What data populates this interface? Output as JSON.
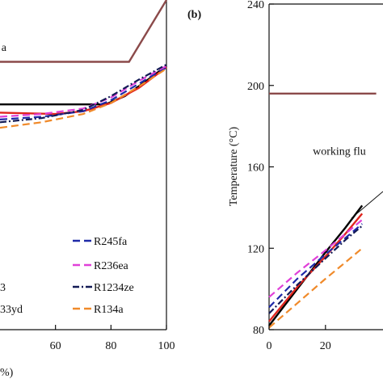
{
  "chart_data": [
    {
      "type": "line",
      "panel_label": "",
      "xlabel": "%)",
      "ylabel": "",
      "xlim": [
        40,
        100
      ],
      "ylim": [
        -5,
        235
      ],
      "x_ticks": [
        "60",
        "80",
        "100"
      ],
      "y_ticks": [],
      "annotations": [
        {
          "text": "a",
          "x": 40.5,
          "y": 198
        }
      ],
      "legend": [
        "R245fa",
        "R236ea",
        "R1234ze",
        "R134a",
        "3",
        "33yd"
      ],
      "series": [
        {
          "name": "heat-source",
          "color": "#8b4a4a",
          "style": "solid",
          "x": [
            40,
            86.5,
            100
          ],
          "y": [
            190,
            190,
            235
          ]
        },
        {
          "name": "black-solid",
          "color": "#000000",
          "style": "solid",
          "x": [
            40,
            78,
            85,
            92,
            100
          ],
          "y": [
            159,
            159,
            165,
            175,
            187
          ]
        },
        {
          "name": "red-solid",
          "color": "#e0261f",
          "style": "solid",
          "x": [
            40,
            60,
            70,
            80,
            90,
            100
          ],
          "y": [
            153,
            152,
            154,
            160,
            171,
            186
          ]
        },
        {
          "name": "R245fa",
          "color": "#1f2aa8",
          "style": "dashed",
          "x": [
            40,
            55,
            70,
            80,
            90,
            100
          ],
          "y": [
            148,
            150,
            154,
            162,
            174,
            186
          ]
        },
        {
          "name": "R236ea",
          "color": "#e040d8",
          "style": "dashed",
          "x": [
            40,
            55,
            70,
            80,
            90,
            100
          ],
          "y": [
            150,
            152,
            156,
            164,
            176,
            187
          ]
        },
        {
          "name": "R1234ze",
          "color": "#121a55",
          "style": "dashdot",
          "x": [
            40,
            55,
            70,
            80,
            90,
            100
          ],
          "y": [
            146,
            149,
            155,
            165,
            177,
            188
          ]
        },
        {
          "name": "R134a",
          "color": "#f08a2a",
          "style": "dashed",
          "x": [
            40,
            55,
            70,
            80,
            90,
            100
          ],
          "y": [
            142,
            146,
            152,
            160,
            172,
            185
          ]
        }
      ]
    },
    {
      "type": "line",
      "panel_label": "(b)",
      "xlabel": "",
      "ylabel": "Temperature (°C)",
      "xlim": [
        0,
        38
      ],
      "ylim": [
        80,
        240
      ],
      "x_ticks": [
        "0",
        "20"
      ],
      "y_ticks": [
        "80",
        "120",
        "160",
        "200",
        "240"
      ],
      "annotations": [
        {
          "text": "working flu",
          "x": 15.5,
          "y": 166
        }
      ],
      "series": [
        {
          "name": "heat-source",
          "color": "#8b4a4a",
          "style": "solid",
          "x": [
            0,
            38
          ],
          "y": [
            196,
            196
          ]
        },
        {
          "name": "black-solid",
          "color": "#000000",
          "style": "solid",
          "x": [
            0,
            10,
            20,
            27,
            33
          ],
          "y": [
            82,
            100,
            118,
            130,
            141
          ]
        },
        {
          "name": "red-solid",
          "color": "#e0261f",
          "style": "solid",
          "x": [
            0,
            10,
            20,
            27,
            33
          ],
          "y": [
            84,
            101,
            116,
            127,
            137
          ]
        },
        {
          "name": "R245fa",
          "color": "#1f2aa8",
          "style": "dashed",
          "x": [
            0,
            10,
            20,
            27,
            33
          ],
          "y": [
            91,
            105,
            117,
            125,
            132
          ]
        },
        {
          "name": "R236ea",
          "color": "#e040d8",
          "style": "dashed",
          "x": [
            0,
            10,
            20,
            27,
            33
          ],
          "y": [
            96,
            108,
            119,
            127,
            134
          ]
        },
        {
          "name": "R1234ze",
          "color": "#121a55",
          "style": "dashdot",
          "x": [
            0,
            10,
            20,
            27,
            33
          ],
          "y": [
            88,
            102,
            115,
            124,
            131
          ]
        },
        {
          "name": "R134a",
          "color": "#f08a2a",
          "style": "dashed",
          "x": [
            0,
            10,
            20,
            27,
            33
          ],
          "y": [
            81,
            93,
            105,
            113,
            120
          ]
        }
      ]
    }
  ]
}
